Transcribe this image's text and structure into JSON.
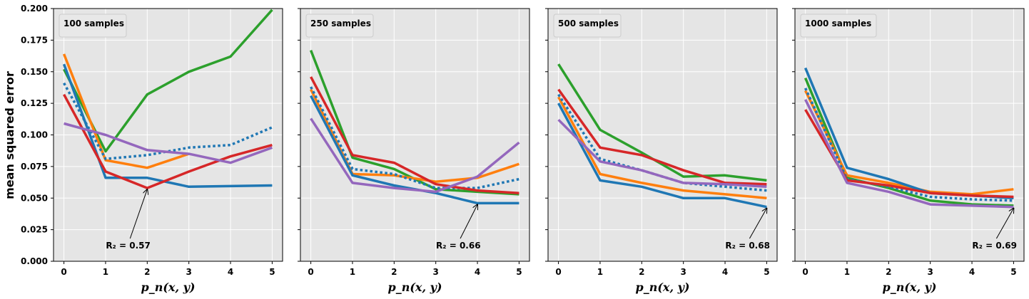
{
  "chart_data": [
    {
      "type": "line",
      "title": "100 samples",
      "x": [
        0,
        1,
        2,
        3,
        4,
        5
      ],
      "xlabel": "p_n(x, y)",
      "ylabel": "mean squared error",
      "ylim": [
        0,
        0.2
      ],
      "yticks": [
        "0.000",
        "0.025",
        "0.050",
        "0.075",
        "0.100",
        "0.125",
        "0.150",
        "0.175",
        "0.200"
      ],
      "xticks": [
        "0",
        "1",
        "2",
        "3",
        "4",
        "5"
      ],
      "grid": true,
      "series": [
        {
          "color": "#2ca02c",
          "style": "solid",
          "values": [
            0.152,
            0.087,
            0.132,
            0.15,
            0.162,
            0.199
          ]
        },
        {
          "color": "#ff7f0e",
          "style": "solid",
          "values": [
            0.164,
            0.08,
            0.074,
            0.085,
            null,
            null
          ]
        },
        {
          "color": "#1f77b4",
          "style": "solid",
          "values": [
            0.156,
            0.066,
            0.066,
            0.059,
            0.0595,
            0.06
          ]
        },
        {
          "color": "#1f77b4",
          "style": "dotted",
          "values": [
            0.141,
            0.081,
            0.084,
            0.09,
            0.092,
            0.106
          ]
        },
        {
          "color": "#d62728",
          "style": "solid",
          "values": [
            0.132,
            0.071,
            0.058,
            0.071,
            0.083,
            0.092
          ]
        },
        {
          "color": "#9467bd",
          "style": "solid",
          "values": [
            0.109,
            0.1,
            0.088,
            0.085,
            0.078,
            0.09
          ]
        }
      ],
      "annotation": {
        "text": "R₂ = 0.57",
        "x": 2,
        "y": 0.058
      }
    },
    {
      "type": "line",
      "title": "250 samples",
      "x": [
        0,
        1,
        2,
        3,
        4,
        5
      ],
      "xlabel": "p_n(x, y)",
      "ylim": [
        0,
        0.2
      ],
      "xticks": [
        "0",
        "1",
        "2",
        "3",
        "4",
        "5"
      ],
      "grid": true,
      "series": [
        {
          "color": "#2ca02c",
          "style": "solid",
          "values": [
            0.167,
            0.082,
            0.073,
            0.057,
            0.055,
            0.053
          ]
        },
        {
          "color": "#ff7f0e",
          "style": "solid",
          "values": [
            0.136,
            0.069,
            0.068,
            0.063,
            0.066,
            0.077
          ]
        },
        {
          "color": "#1f77b4",
          "style": "solid",
          "values": [
            0.131,
            0.068,
            0.06,
            0.054,
            0.046,
            0.046
          ]
        },
        {
          "color": "#1f77b4",
          "style": "dotted",
          "values": [
            0.138,
            0.073,
            0.069,
            0.058,
            0.058,
            0.065
          ]
        },
        {
          "color": "#d62728",
          "style": "solid",
          "values": [
            0.146,
            0.084,
            0.078,
            0.061,
            0.056,
            0.054
          ]
        },
        {
          "color": "#9467bd",
          "style": "solid",
          "values": [
            0.113,
            0.062,
            0.058,
            0.055,
            0.067,
            0.094
          ]
        }
      ],
      "annotation": {
        "text": "R₂ = 0.66",
        "x": 4,
        "y": 0.046
      }
    },
    {
      "type": "line",
      "title": "500 samples",
      "x": [
        0,
        1,
        2,
        3,
        4,
        5
      ],
      "xlabel": "p_n(x, y)",
      "ylim": [
        0,
        0.2
      ],
      "xticks": [
        "0",
        "1",
        "2",
        "3",
        "4",
        "5"
      ],
      "grid": true,
      "series": [
        {
          "color": "#2ca02c",
          "style": "solid",
          "values": [
            0.156,
            0.104,
            0.086,
            0.067,
            0.068,
            0.064
          ]
        },
        {
          "color": "#ff7f0e",
          "style": "solid",
          "values": [
            0.13,
            0.069,
            0.062,
            0.056,
            0.053,
            0.05
          ]
        },
        {
          "color": "#1f77b4",
          "style": "solid",
          "values": [
            0.125,
            0.064,
            0.059,
            0.05,
            0.05,
            0.043
          ]
        },
        {
          "color": "#1f77b4",
          "style": "dotted",
          "values": [
            0.132,
            0.081,
            0.072,
            0.062,
            0.059,
            0.056
          ]
        },
        {
          "color": "#d62728",
          "style": "solid",
          "values": [
            0.136,
            0.09,
            0.084,
            0.072,
            0.062,
            0.061
          ]
        },
        {
          "color": "#9467bd",
          "style": "solid",
          "values": [
            0.112,
            0.079,
            0.072,
            0.062,
            0.061,
            0.059
          ]
        }
      ],
      "annotation": {
        "text": "R₂ = 0.68",
        "x": 5,
        "y": 0.043
      }
    },
    {
      "type": "line",
      "title": "1000 samples",
      "x": [
        0,
        1,
        2,
        3,
        4,
        5
      ],
      "xlabel": "p_n(x, y)",
      "ylim": [
        0,
        0.2
      ],
      "xticks": [
        "0",
        "1",
        "2",
        "3",
        "4",
        "5"
      ],
      "grid": true,
      "series": [
        {
          "color": "#2ca02c",
          "style": "solid",
          "values": [
            0.145,
            0.066,
            0.058,
            0.048,
            0.045,
            0.044
          ]
        },
        {
          "color": "#ff7f0e",
          "style": "solid",
          "values": [
            0.135,
            0.068,
            0.062,
            0.055,
            0.053,
            0.057
          ]
        },
        {
          "color": "#1f77b4",
          "style": "solid",
          "values": [
            0.153,
            0.074,
            0.065,
            0.054,
            0.052,
            0.05
          ]
        },
        {
          "color": "#1f77b4",
          "style": "dotted",
          "values": [
            0.137,
            0.065,
            0.059,
            0.051,
            0.049,
            0.048
          ]
        },
        {
          "color": "#d62728",
          "style": "solid",
          "values": [
            0.12,
            0.064,
            0.06,
            0.054,
            0.052,
            0.051
          ]
        },
        {
          "color": "#9467bd",
          "style": "solid",
          "values": [
            0.128,
            0.062,
            0.055,
            0.045,
            0.044,
            0.043
          ]
        }
      ],
      "annotation": {
        "text": "R₂ = 0.69",
        "x": 5,
        "y": 0.043
      }
    }
  ]
}
